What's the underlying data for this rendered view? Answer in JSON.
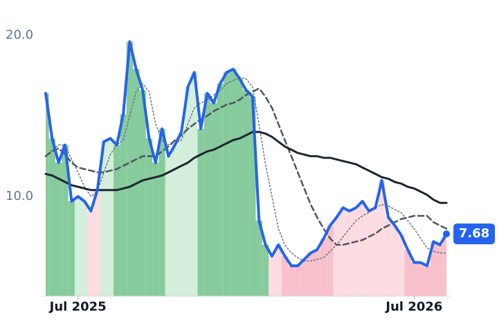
{
  "chart_data": {
    "type": "line",
    "categories": [
      null,
      null,
      null,
      null,
      null,
      "Jul 2025",
      null,
      null,
      null,
      null,
      null,
      null,
      null,
      null,
      null,
      null,
      null,
      null,
      null,
      null,
      null,
      null,
      null,
      null,
      null,
      null,
      null,
      null,
      null,
      null,
      null,
      null,
      null,
      null,
      null,
      null,
      null,
      null,
      null,
      null,
      null,
      null,
      null,
      null,
      null,
      null,
      null,
      null,
      null,
      null,
      null,
      null,
      null,
      null,
      null,
      null,
      null,
      "Jul 2026",
      null,
      null,
      null,
      null,
      null
    ],
    "series": [
      {
        "color": "#2563eb",
        "width": 4,
        "dash": "none",
        "values": [
          16.4,
          13.6,
          12.1,
          13.2,
          9.7,
          10.0,
          9.7,
          9.1,
          10.4,
          13.4,
          13.6,
          13.2,
          15.1,
          19.6,
          17.9,
          16.6,
          13.6,
          12.1,
          14.2,
          12.5,
          13.2,
          14.0,
          16.8,
          17.7,
          14.2,
          16.4,
          15.8,
          17.0,
          17.7,
          17.9,
          17.3,
          16.6,
          16.2,
          8.5,
          7.0,
          6.3,
          7.0,
          6.3,
          5.7,
          5.7,
          6.1,
          6.5,
          6.7,
          7.4,
          8.2,
          8.7,
          9.3,
          9.1,
          9.3,
          9.7,
          9.1,
          9.3,
          11.0,
          8.7,
          8.2,
          7.6,
          6.7,
          5.9,
          5.9,
          5.7,
          7.2,
          7.0,
          7.68
        ]
      },
      {
        "color": "#1e2432",
        "width": 3,
        "dash": "none",
        "values": [
          11.4,
          11.3,
          11.1,
          10.9,
          10.7,
          10.6,
          10.5,
          10.4,
          10.4,
          10.4,
          10.4,
          10.4,
          10.5,
          10.6,
          10.8,
          11.0,
          11.1,
          11.2,
          11.3,
          11.5,
          11.7,
          11.9,
          12.1,
          12.4,
          12.6,
          12.8,
          12.9,
          13.1,
          13.3,
          13.5,
          13.6,
          13.8,
          14.0,
          14.0,
          13.9,
          13.7,
          13.4,
          13.1,
          12.9,
          12.7,
          12.6,
          12.5,
          12.5,
          12.4,
          12.4,
          12.3,
          12.2,
          12.1,
          12.0,
          11.8,
          11.6,
          11.4,
          11.2,
          11.1,
          10.9,
          10.8,
          10.6,
          10.5,
          10.3,
          10.1,
          9.8,
          9.6,
          9.6
        ]
      },
      {
        "color": "#4b5563",
        "width": 2.5,
        "dash": "8 5",
        "values": [
          12.5,
          12.8,
          13.0,
          12.6,
          12.1,
          11.8,
          11.7,
          11.6,
          11.5,
          11.5,
          11.6,
          11.7,
          11.9,
          12.1,
          12.3,
          12.5,
          12.5,
          12.5,
          12.8,
          13.1,
          13.5,
          13.8,
          14.2,
          14.5,
          14.8,
          15.0,
          15.3,
          15.5,
          15.7,
          15.8,
          16.0,
          16.3,
          16.5,
          16.7,
          16.2,
          15.5,
          14.5,
          13.5,
          12.5,
          11.5,
          10.5,
          9.5,
          8.7,
          8.0,
          7.4,
          7.0,
          7.0,
          7.1,
          7.2,
          7.3,
          7.5,
          7.7,
          8.0,
          8.2,
          8.4,
          8.6,
          8.7,
          8.8,
          8.8,
          8.8,
          8.4,
          8.2,
          8.0
        ]
      },
      {
        "color": "#6b7280",
        "width": 1.5,
        "dash": "2 3",
        "values": [
          12.5,
          12.9,
          13.2,
          13.2,
          12.3,
          11.5,
          10.6,
          10.0,
          10.3,
          11.5,
          12.6,
          13.2,
          13.5,
          15.0,
          16.5,
          17.0,
          16.5,
          14.5,
          13.5,
          13.2,
          13.3,
          13.5,
          14.5,
          15.5,
          15.8,
          16.0,
          16.3,
          16.6,
          17.0,
          17.2,
          17.4,
          17.3,
          16.8,
          14.5,
          12.0,
          10.0,
          8.0,
          7.0,
          6.5,
          6.2,
          6.0,
          6.0,
          6.1,
          6.2,
          6.6,
          7.0,
          7.5,
          8.0,
          8.5,
          8.8,
          9.0,
          9.3,
          9.5,
          9.4,
          9.2,
          9.0,
          8.5,
          8.0,
          7.4,
          6.8,
          6.6,
          6.5,
          6.5
        ]
      }
    ],
    "area_colors": [
      "#86cb9b",
      "#86cb9b",
      "#86cb9b",
      "#86cb9b",
      "#86cb9b",
      "#d3eedb",
      "#d3eedb",
      "#fcdbe1",
      "#fcdbe1",
      "#d3eedb",
      "#d3eedb",
      "#86cb9b",
      "#86cb9b",
      "#86cb9b",
      "#86cb9b",
      "#86cb9b",
      "#86cb9b",
      "#86cb9b",
      "#86cb9b",
      "#d3eedb",
      "#d3eedb",
      "#d3eedb",
      "#d3eedb",
      "#d3eedb",
      "#86cb9b",
      "#86cb9b",
      "#86cb9b",
      "#86cb9b",
      "#86cb9b",
      "#86cb9b",
      "#86cb9b",
      "#86cb9b",
      "#86cb9b",
      "#86cb9b",
      "#86cb9b",
      "#fcdbe1",
      "#fcdbe1",
      "#f8c0cb",
      "#f8c0cb",
      "#f8c0cb",
      "#f8c0cb",
      "#f8c0cb",
      "#f8c0cb",
      "#f8c0cb",
      "#f8c0cb",
      "#fcdbe1",
      "#fcdbe1",
      "#fcdbe1",
      "#fcdbe1",
      "#fcdbe1",
      "#fcdbe1",
      "#fcdbe1",
      "#fcdbe1",
      "#fcdbe1",
      "#fcdbe1",
      "#fcdbe1",
      "#f8c0cb",
      "#f8c0cb",
      "#f8c0cb",
      "#f8c0cb",
      "#f8c0cb",
      "#f8c0cb",
      "#f8c0cb"
    ],
    "ylim": [
      3.82,
      22.19
    ],
    "yticks": [
      {
        "value": 10,
        "label": "10.0"
      },
      {
        "value": 20,
        "label": "20.0"
      }
    ],
    "grid": false
  }
}
